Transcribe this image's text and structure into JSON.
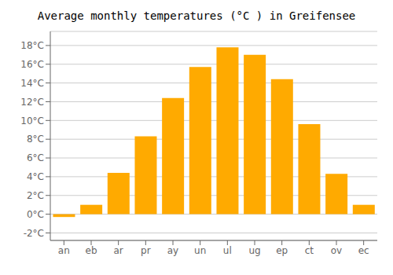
{
  "chart_data": {
    "type": "bar",
    "title": "Average monthly temperatures (°C ) in Greifensee",
    "categories": [
      "an",
      "eb",
      "ar",
      "pr",
      "ay",
      "un",
      "ul",
      "ug",
      "ep",
      "ct",
      "ov",
      "ec"
    ],
    "values": [
      -0.3,
      1.0,
      4.4,
      8.3,
      12.4,
      15.7,
      17.8,
      17.0,
      14.4,
      9.6,
      4.3,
      1.0
    ],
    "color": "#FFAA00",
    "ylim": [
      -2.8,
      19.5
    ],
    "yticks": [
      {
        "value": -2,
        "label": "-2°C"
      },
      {
        "value": 0,
        "label": "0°C"
      },
      {
        "value": 2,
        "label": "2°C"
      },
      {
        "value": 4,
        "label": "4°C"
      },
      {
        "value": 6,
        "label": "6°C"
      },
      {
        "value": 8,
        "label": "8°C"
      },
      {
        "value": 10,
        "label": "10°C"
      },
      {
        "value": 12,
        "label": "12°C"
      },
      {
        "value": 14,
        "label": "14°C"
      },
      {
        "value": 16,
        "label": "16°C"
      },
      {
        "value": 18,
        "label": "18°C"
      }
    ],
    "grid": true
  }
}
